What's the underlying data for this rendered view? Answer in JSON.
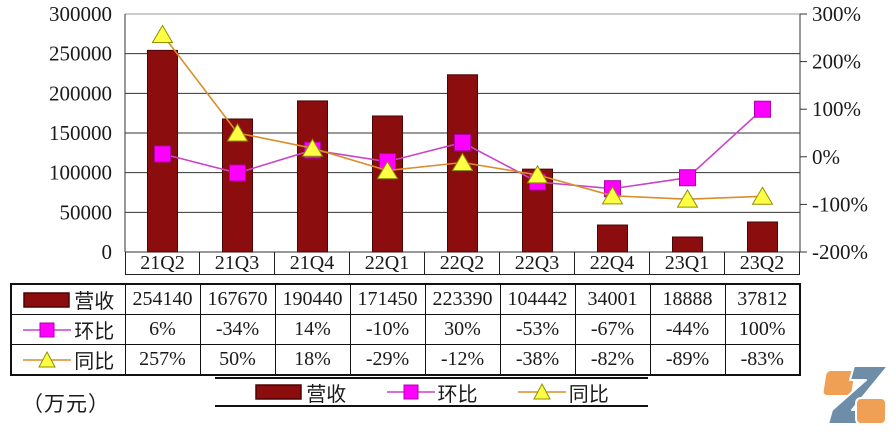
{
  "unit_label": "（万元）",
  "chart_data": {
    "type": "combo-bar-line",
    "categories": [
      "21Q2",
      "21Q3",
      "21Q4",
      "22Q1",
      "22Q2",
      "22Q3",
      "22Q4",
      "23Q1",
      "23Q2"
    ],
    "bar_series": {
      "name": "营收",
      "axis": "left",
      "values": [
        254140,
        167670,
        190440,
        171450,
        223390,
        104442,
        34001,
        18888,
        37812
      ]
    },
    "line_series": [
      {
        "name": "环比",
        "axis": "right",
        "marker": "square",
        "values": [
          6,
          -34,
          14,
          -10,
          30,
          -53,
          -67,
          -44,
          100
        ]
      },
      {
        "name": "同比",
        "axis": "right",
        "marker": "triangle",
        "values": [
          257,
          50,
          18,
          -29,
          -12,
          -38,
          -82,
          -89,
          -83
        ]
      }
    ],
    "left_axis": {
      "min": 0,
      "max": 300000,
      "step": 50000,
      "labels": [
        "300000",
        "250000",
        "200000",
        "150000",
        "100000",
        "50000",
        "0"
      ]
    },
    "right_axis": {
      "min": -200,
      "max": 300,
      "step": 100,
      "labels": [
        "300%",
        "200%",
        "100%",
        "0%",
        "-100%",
        "-200%"
      ]
    },
    "grid": true,
    "legend_position": "bottom"
  },
  "table": {
    "columns": [
      "21Q2",
      "21Q3",
      "21Q4",
      "22Q1",
      "22Q2",
      "22Q3",
      "22Q4",
      "23Q1",
      "23Q2"
    ],
    "rows": [
      {
        "label": "营收",
        "marker": "bar",
        "values": [
          "254140",
          "167670",
          "190440",
          "171450",
          "223390",
          "104442",
          "34001",
          "18888",
          "37812"
        ]
      },
      {
        "label": "环比",
        "marker": "square",
        "values": [
          "6%",
          "-34%",
          "14%",
          "-10%",
          "30%",
          "-53%",
          "-67%",
          "-44%",
          "100%"
        ]
      },
      {
        "label": "同比",
        "marker": "triangle",
        "values": [
          "257%",
          "50%",
          "18%",
          "-29%",
          "-12%",
          "-38%",
          "-82%",
          "-89%",
          "-83%"
        ]
      }
    ]
  },
  "legend": {
    "items": [
      {
        "label": "营收",
        "marker": "bar"
      },
      {
        "label": "环比",
        "marker": "square"
      },
      {
        "label": "同比",
        "marker": "triangle"
      }
    ]
  },
  "colors": {
    "bar": "#8B0D0D",
    "bar_edge": "#4a0505",
    "line_pink": "#C944C9",
    "marker_pink": "#FF00FF",
    "marker_pink_edge": "#B000B0",
    "line_orange": "#D98E2B",
    "marker_yellow": "#FFFF44",
    "marker_yellow_edge": "#8F8F00",
    "grid": "#333333",
    "grid_top": "#9a9a9a",
    "logo_orange": "#F0A055",
    "logo_blue": "#6E8DA8"
  }
}
